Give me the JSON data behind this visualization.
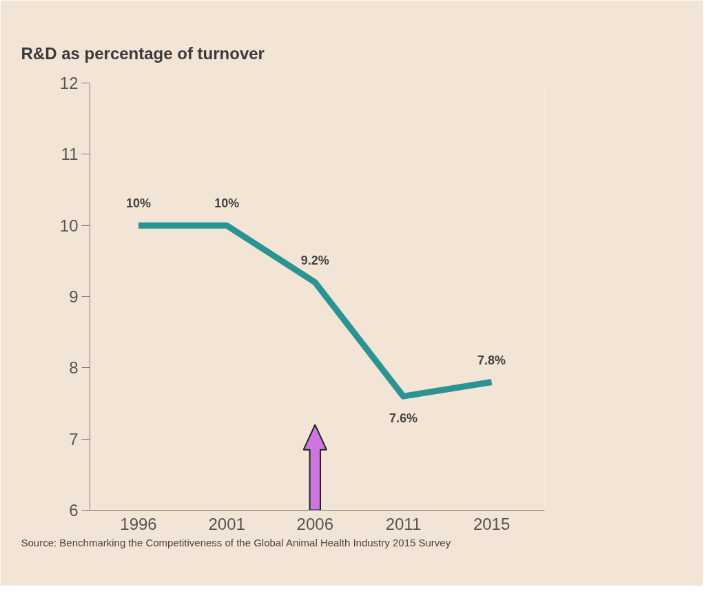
{
  "chart_data": {
    "type": "line",
    "title": "R&D as percentage of turnover",
    "categories": [
      "1996",
      "2001",
      "2006",
      "2011",
      "2015"
    ],
    "series": [
      {
        "color": "#2a9393",
        "values": [
          10,
          10,
          9.2,
          7.6,
          7.8
        ],
        "value_labels": [
          "10%",
          "10%",
          "9.2%",
          "7.6%",
          "7.8%"
        ]
      }
    ],
    "ylim": [
      6,
      12
    ],
    "yticks": [
      6,
      7,
      8,
      9,
      10,
      11,
      12
    ],
    "grid": false,
    "marker": "none",
    "line_style": "solid",
    "annotations": [
      "Source: Benchmarking the Competitiveness of the Global Animal Health Industry 2015 Survey"
    ]
  }
}
